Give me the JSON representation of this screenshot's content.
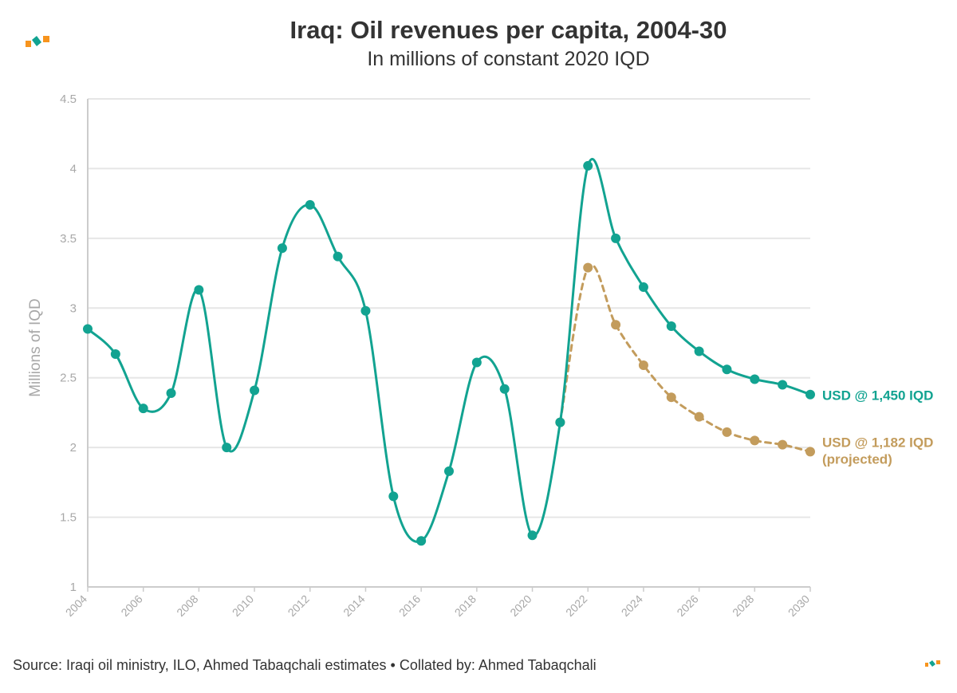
{
  "title": "Iraq: Oil revenues per capita, 2004-30",
  "subtitle": "In millions of constant 2020 IQD",
  "footer": "Source: Iraqi oil ministry, ILO, Ahmed Tabaqchali estimates • Collated by: Ahmed Tabaqchali",
  "colors": {
    "teal": "#12a391",
    "gold": "#c39c5c",
    "grid": "#e6e6e6",
    "axis": "#cccccc",
    "logo_orange": "#f7941d",
    "logo_teal": "#12a391"
  },
  "chart_data": {
    "type": "line",
    "title": "Iraq: Oil revenues per capita, 2004-30",
    "subtitle": "In millions of constant 2020 IQD",
    "xlabel": "",
    "ylabel": "Millions of IQD",
    "xlim": [
      2004,
      2030
    ],
    "ylim": [
      1,
      4.5
    ],
    "y_ticks": [
      1,
      1.5,
      2,
      2.5,
      3,
      3.5,
      4,
      4.5
    ],
    "x_ticks": [
      2004,
      2006,
      2008,
      2010,
      2012,
      2014,
      2016,
      2018,
      2020,
      2022,
      2024,
      2026,
      2028,
      2030
    ],
    "grid": true,
    "series": [
      {
        "name": "USD @ 1,450 IQD",
        "style": "solid",
        "x": [
          2004,
          2005,
          2006,
          2007,
          2008,
          2009,
          2010,
          2011,
          2012,
          2013,
          2014,
          2015,
          2016,
          2017,
          2018,
          2019,
          2020,
          2021,
          2022,
          2023,
          2024,
          2025,
          2026,
          2027,
          2028,
          2029,
          2030
        ],
        "values": [
          2.85,
          2.67,
          2.28,
          2.39,
          3.13,
          2.0,
          2.41,
          3.43,
          3.74,
          3.37,
          2.98,
          1.65,
          1.33,
          1.83,
          2.61,
          2.42,
          1.37,
          2.18,
          4.02,
          3.5,
          3.15,
          2.87,
          2.69,
          2.56,
          2.49,
          2.45,
          2.38
        ]
      },
      {
        "name": "USD @ 1,182 IQD",
        "name_line2": "(projected)",
        "style": "dashed",
        "x": [
          2021,
          2022,
          2023,
          2024,
          2025,
          2026,
          2027,
          2028,
          2029,
          2030
        ],
        "values": [
          2.18,
          3.29,
          2.88,
          2.59,
          2.36,
          2.22,
          2.11,
          2.05,
          2.02,
          1.97
        ]
      }
    ]
  }
}
